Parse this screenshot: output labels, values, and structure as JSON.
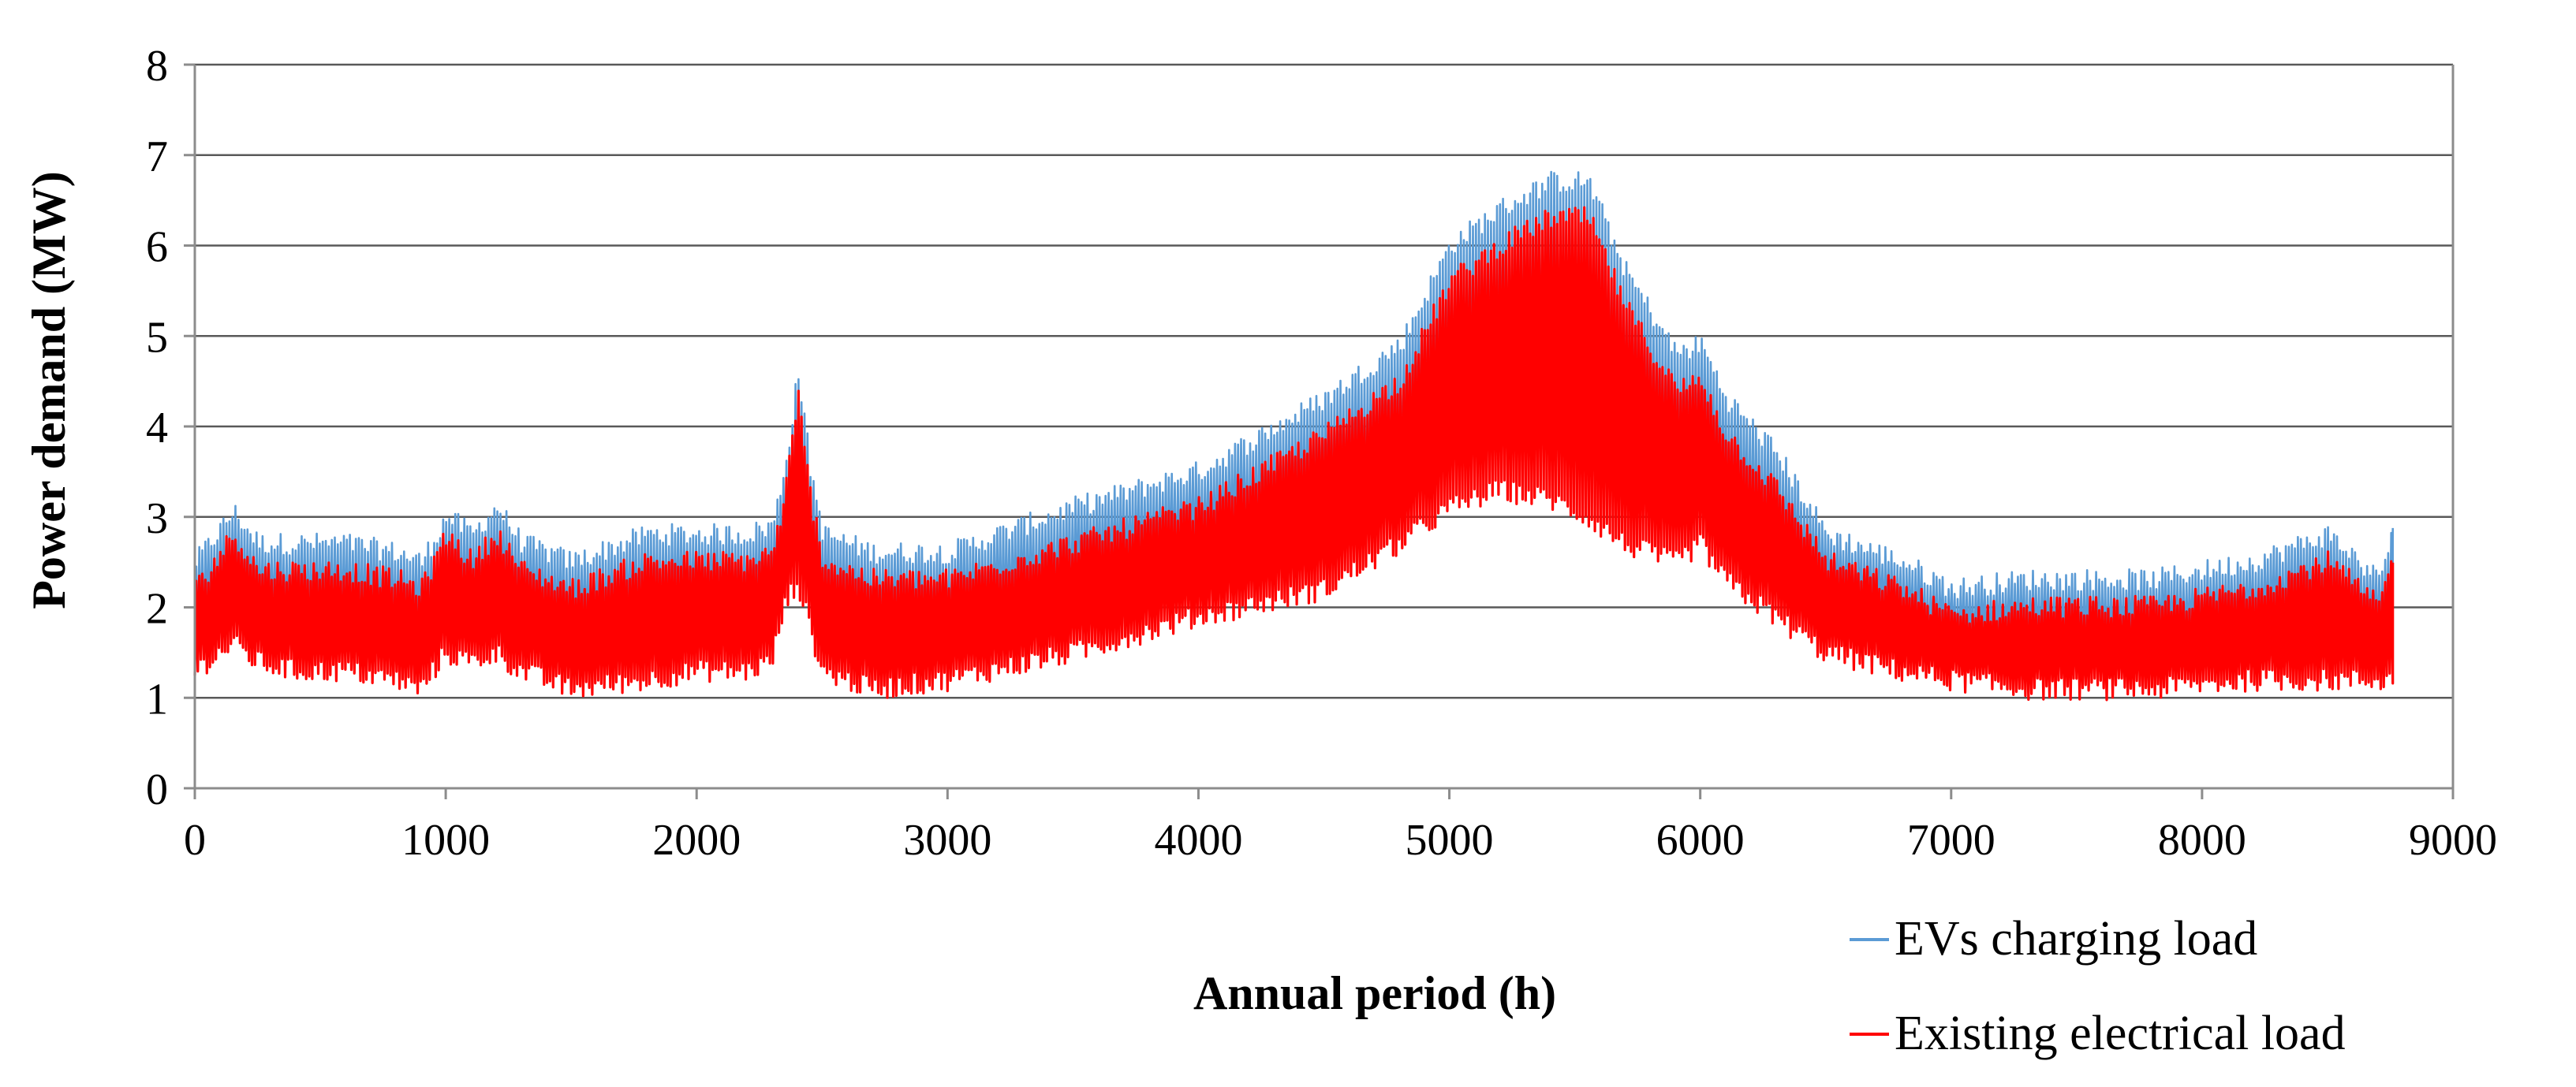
{
  "chart_data": {
    "type": "line",
    "title": "",
    "xlabel": "Annual period (h)",
    "ylabel": "Power demand (MW)",
    "xlim": [
      0,
      9000
    ],
    "ylim": [
      0,
      8
    ],
    "x_ticks": [
      0,
      1000,
      2000,
      3000,
      4000,
      5000,
      6000,
      7000,
      8000,
      9000
    ],
    "x_tick_labels": [
      "0",
      "1000",
      "2000",
      "3000",
      "4000",
      "5000",
      "6000",
      "7000",
      "8000",
      "9000"
    ],
    "y_ticks": [
      0,
      1,
      2,
      3,
      4,
      5,
      6,
      7,
      8
    ],
    "y_tick_labels": [
      "0",
      "1",
      "2",
      "3",
      "4",
      "5",
      "6",
      "7",
      "8"
    ],
    "grid": "horizontal",
    "legend_position": "bottom-right",
    "x_end": 8760,
    "envelope_x": [
      0,
      150,
      250,
      400,
      600,
      800,
      900,
      1000,
      1100,
      1200,
      1300,
      1500,
      1800,
      2000,
      2200,
      2300,
      2350,
      2400,
      2450,
      2500,
      2700,
      3000,
      3500,
      4000,
      4500,
      4800,
      5000,
      5200,
      5400,
      5550,
      5700,
      5900,
      6000,
      6100,
      6300,
      6500,
      6800,
      7000,
      7300,
      7800,
      8200,
      8500,
      8700,
      8760
    ],
    "series": [
      {
        "name": "EVs charging load",
        "color": "#5b9bd5",
        "low": [
          1.5,
          1.8,
          1.7,
          1.6,
          1.6,
          1.5,
          1.4,
          1.8,
          1.6,
          1.8,
          1.6,
          1.4,
          1.5,
          1.6,
          1.6,
          1.7,
          2.3,
          2.5,
          2.0,
          1.6,
          1.4,
          1.5,
          1.8,
          2.3,
          2.6,
          3.1,
          3.6,
          3.8,
          3.7,
          3.5,
          3.2,
          3.0,
          3.2,
          2.7,
          2.3,
          1.8,
          1.6,
          1.5,
          1.4,
          1.4,
          1.5,
          1.5,
          1.4,
          1.4
        ],
        "high": [
          2.5,
          3.05,
          2.7,
          2.7,
          2.7,
          2.6,
          2.5,
          3.0,
          2.8,
          3.1,
          2.7,
          2.5,
          2.8,
          2.8,
          2.8,
          2.9,
          3.6,
          4.6,
          3.5,
          2.8,
          2.6,
          2.6,
          3.1,
          3.5,
          4.3,
          4.9,
          6.0,
          6.4,
          6.7,
          6.7,
          5.7,
          4.8,
          4.9,
          4.3,
          3.7,
          2.8,
          2.5,
          2.2,
          2.3,
          2.3,
          2.5,
          2.8,
          2.3,
          2.9
        ]
      },
      {
        "name": "Existing electrical load",
        "color": "#ff0000",
        "low": [
          1.3,
          1.6,
          1.4,
          1.3,
          1.3,
          1.2,
          1.1,
          1.5,
          1.4,
          1.5,
          1.3,
          1.1,
          1.2,
          1.3,
          1.3,
          1.4,
          2.0,
          2.3,
          1.8,
          1.3,
          1.1,
          1.2,
          1.5,
          1.9,
          2.2,
          2.7,
          3.1,
          3.3,
          3.2,
          3.0,
          2.7,
          2.5,
          2.7,
          2.3,
          1.9,
          1.5,
          1.3,
          1.2,
          1.1,
          1.1,
          1.2,
          1.2,
          1.2,
          1.2
        ],
        "high": [
          2.2,
          2.8,
          2.4,
          2.4,
          2.4,
          2.3,
          2.2,
          2.8,
          2.5,
          2.8,
          2.4,
          2.2,
          2.5,
          2.5,
          2.5,
          2.6,
          3.3,
          4.3,
          3.2,
          2.5,
          2.3,
          2.3,
          2.7,
          3.1,
          3.9,
          4.5,
          5.6,
          6.0,
          6.3,
          6.3,
          5.3,
          4.4,
          4.5,
          3.9,
          3.3,
          2.5,
          2.2,
          1.9,
          2.0,
          2.0,
          2.2,
          2.5,
          2.0,
          2.6
        ]
      }
    ]
  }
}
